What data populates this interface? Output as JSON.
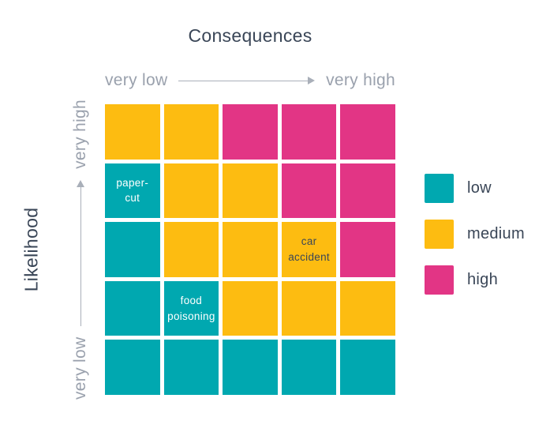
{
  "title": "Consequences",
  "x_axis": {
    "label_low": "very low",
    "label_high": "very high"
  },
  "y_axis": {
    "title": "Likelihood",
    "label_low": "very low",
    "label_high": "very high"
  },
  "legend": {
    "items": [
      {
        "label": "low",
        "color": "#00A8B0"
      },
      {
        "label": "medium",
        "color": "#FDBC11"
      },
      {
        "label": "high",
        "color": "#E23585"
      }
    ]
  },
  "colors": {
    "low": "#00A8B0",
    "medium": "#FDBC11",
    "high": "#E23585",
    "dark_text": "#3A4657",
    "light_text": "#FFFFFF",
    "axis_text": "#9AA1AD"
  },
  "chart_data": {
    "type": "heatmap",
    "title": "Consequences",
    "xlabel": "Consequences (very low → very high)",
    "ylabel": "Likelihood (very low → very high)",
    "grid_size": {
      "rows": 5,
      "cols": 5
    },
    "rows_top_to_bottom": [
      [
        "medium",
        "medium",
        "high",
        "high",
        "high"
      ],
      [
        "low",
        "medium",
        "medium",
        "high",
        "high"
      ],
      [
        "low",
        "medium",
        "medium",
        "medium",
        "high"
      ],
      [
        "low",
        "low",
        "medium",
        "medium",
        "medium"
      ],
      [
        "low",
        "low",
        "low",
        "low",
        "low"
      ]
    ],
    "annotations": [
      {
        "row": 1,
        "col": 0,
        "label": "paper-\ncut",
        "text_color": "#FFFFFF"
      },
      {
        "row": 2,
        "col": 3,
        "label": "car\naccident",
        "text_color": "#3A4657"
      },
      {
        "row": 3,
        "col": 1,
        "label": "food\npoisoning",
        "text_color": "#FFFFFF"
      }
    ]
  }
}
